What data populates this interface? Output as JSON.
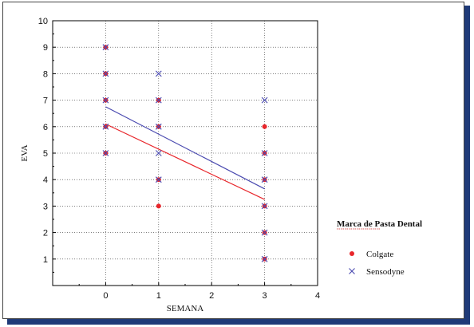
{
  "chart_data": {
    "type": "scatter",
    "title": "",
    "xlabel": "SEMANA",
    "ylabel": "EVA",
    "xlim": [
      -1,
      4
    ],
    "ylim": [
      0,
      10
    ],
    "xticks": [
      0,
      1,
      2,
      3,
      4
    ],
    "yticks": [
      1,
      2,
      3,
      4,
      5,
      6,
      7,
      8,
      9,
      10
    ],
    "grid": true,
    "legend_title": "Marca de Pasta Dental",
    "legend_position": "right",
    "series": [
      {
        "name": "Colgate",
        "marker": "circle",
        "color": "#e8262b",
        "x": [
          0,
          0,
          0,
          0,
          0,
          1,
          1,
          1,
          1,
          3,
          3,
          3,
          3,
          3,
          3
        ],
        "y": [
          9,
          8,
          7,
          6,
          5,
          7,
          6,
          4,
          3,
          6,
          5,
          4,
          3,
          2,
          1
        ],
        "fit_line": [
          [
            0,
            6.1
          ],
          [
            3,
            3.25
          ]
        ]
      },
      {
        "name": "Sensodyne",
        "marker": "x",
        "color": "#4a4ab0",
        "x": [
          0,
          0,
          0,
          0,
          0,
          1,
          1,
          1,
          1,
          1,
          3,
          3,
          3,
          3,
          3,
          3
        ],
        "y": [
          9,
          8,
          7,
          6,
          5,
          8,
          7,
          6,
          5,
          4,
          7,
          5,
          4,
          3,
          2,
          1
        ],
        "fit_line": [
          [
            0,
            6.75
          ],
          [
            3,
            3.65
          ]
        ]
      }
    ]
  }
}
